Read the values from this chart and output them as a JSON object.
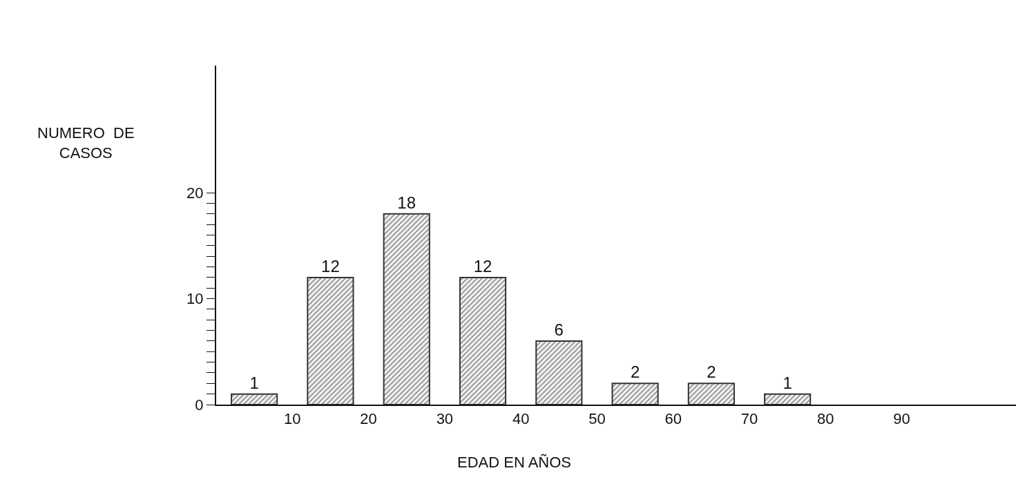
{
  "chart_data": {
    "type": "bar",
    "x": [
      5,
      15,
      25,
      35,
      45,
      55,
      65,
      75
    ],
    "values": [
      1,
      12,
      18,
      12,
      6,
      2,
      2,
      1
    ],
    "color": "#333333",
    "data_labels": true,
    "xlabel": "EDAD EN AÑOS",
    "ylabel": "NUMERO  DE\nCASOS",
    "xlim": [
      0,
      105
    ],
    "xticks": [
      10,
      20,
      30,
      40,
      50,
      60,
      70,
      80,
      90
    ],
    "ylim": [
      0,
      32
    ],
    "yticks": [
      0,
      {
        "value": 1,
        "label": null
      },
      {
        "value": 2,
        "label": null
      },
      {
        "value": 3,
        "label": null
      },
      {
        "value": 4,
        "label": null
      },
      {
        "value": 5,
        "label": null
      },
      {
        "value": 6,
        "label": null
      },
      {
        "value": 7,
        "label": null
      },
      {
        "value": 8,
        "label": null
      },
      {
        "value": 9,
        "label": null
      },
      10,
      {
        "value": 11,
        "label": null
      },
      {
        "value": 12,
        "label": null
      },
      {
        "value": 13,
        "label": null
      },
      {
        "value": 14,
        "label": null
      },
      {
        "value": 15,
        "label": null
      },
      {
        "value": 16,
        "label": null
      },
      {
        "value": 17,
        "label": null
      },
      {
        "value": 18,
        "label": null
      },
      {
        "value": 19,
        "label": null
      },
      20
    ]
  }
}
